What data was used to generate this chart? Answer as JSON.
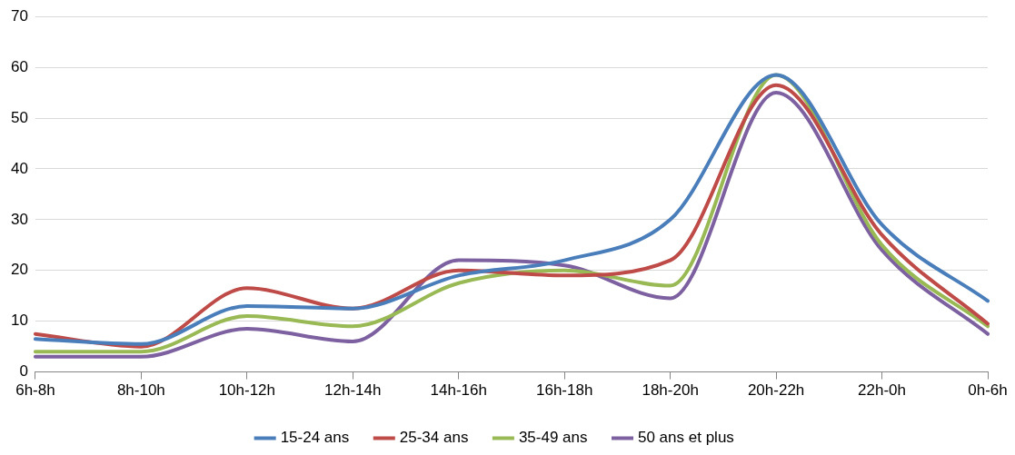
{
  "chart_data": {
    "type": "line",
    "categories": [
      "6h-8h",
      "8h-10h",
      "10h-12h",
      "12h-14h",
      "14h-16h",
      "16h-18h",
      "18h-20h",
      "20h-22h",
      "22h-0h",
      "0h-6h"
    ],
    "series": [
      {
        "name": "15-24 ans",
        "color": "#4a7ebb",
        "values": [
          6.5,
          5.5,
          13,
          12.5,
          19,
          22,
          30,
          58.5,
          29,
          14
        ]
      },
      {
        "name": "25-34 ans",
        "color": "#be4b48",
        "values": [
          7.5,
          5,
          16.5,
          12.5,
          20,
          19,
          22,
          56.5,
          27,
          9.5
        ]
      },
      {
        "name": "35-49 ans",
        "color": "#98b954",
        "values": [
          4,
          4,
          11,
          9,
          17.5,
          20,
          17,
          58.5,
          25,
          9
        ]
      },
      {
        "name": "50 ans et plus",
        "color": "#7d60a0",
        "values": [
          3,
          3,
          8.5,
          6,
          22,
          21,
          14.5,
          55,
          24,
          7.5
        ]
      }
    ],
    "ylim": [
      0,
      70
    ],
    "yticks": [
      0,
      10,
      20,
      30,
      40,
      50,
      60,
      70
    ],
    "grid": "y",
    "legend": "bottom",
    "marker": "none",
    "line_style": "solid"
  }
}
